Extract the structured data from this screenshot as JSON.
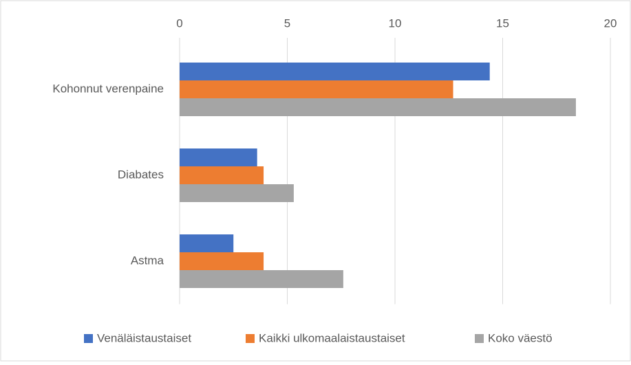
{
  "chart_data": {
    "type": "hbar",
    "categories": [
      "Kohonnut verenpaine",
      "Diabates",
      "Astma"
    ],
    "series": [
      {
        "name": "Venäläistaustaiset",
        "color": "#4472c4",
        "values": [
          14.4,
          3.6,
          2.5
        ]
      },
      {
        "name": "Kaikki ulkomaalaistaustaiset",
        "color": "#ed7d31",
        "values": [
          12.7,
          3.9,
          3.9
        ]
      },
      {
        "name": "Koko väestö",
        "color": "#a5a5a5",
        "values": [
          18.4,
          5.3,
          7.6
        ]
      }
    ],
    "xlim": [
      0,
      20
    ],
    "xticks": [
      0,
      5,
      10,
      15,
      20
    ],
    "grid": true,
    "legend": "bottom"
  }
}
